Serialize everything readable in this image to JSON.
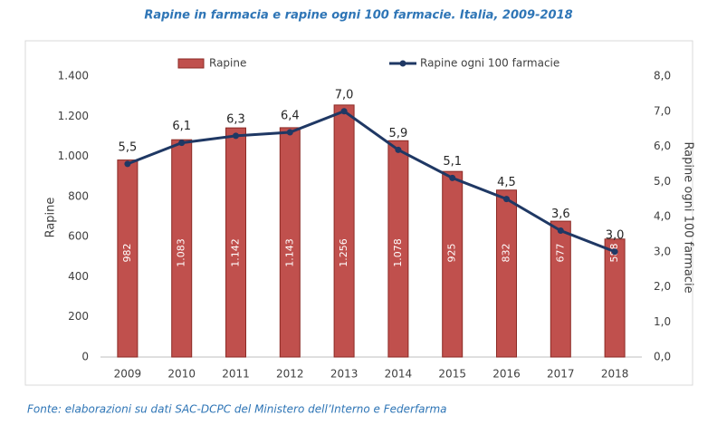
{
  "chart_data": {
    "type": "bar",
    "title": "Rapine in farmacia e rapine ogni 100 farmacie. Italia, 2009-2018",
    "source": "Fonte: elaborazioni su dati SAC-DCPC del Ministero dell’Interno e Federfarma",
    "y_label": "Rapine",
    "y2_label": "Rapine ogni 100 farmacie",
    "categories": [
      "2009",
      "2010",
      "2011",
      "2012",
      "2013",
      "2014",
      "2015",
      "2016",
      "2017",
      "2018"
    ],
    "series": [
      {
        "name": "Rapine",
        "type": "bar",
        "color": "#c0504d",
        "axis": "y",
        "values": [
          982,
          1083,
          1142,
          1143,
          1256,
          1078,
          925,
          832,
          677,
          588
        ],
        "value_labels": [
          "982",
          "1.083",
          "1.142",
          "1.143",
          "1.256",
          "1.078",
          "925",
          "832",
          "677",
          "588"
        ]
      },
      {
        "name": "Rapine ogni 100 farmacie",
        "type": "line",
        "color": "#1f3864",
        "axis": "y2",
        "values": [
          5.5,
          6.1,
          6.3,
          6.4,
          7.0,
          5.9,
          5.1,
          4.5,
          3.6,
          3.0
        ],
        "value_labels": [
          "5,5",
          "6,1",
          "6,3",
          "6,4",
          "7,0",
          "5,9",
          "5,1",
          "4,5",
          "3,6",
          "3,0"
        ]
      }
    ],
    "ylim": [
      0,
      1400
    ],
    "yticks": [
      0,
      200,
      400,
      600,
      800,
      {
        "value": 1000,
        "label": "1.000"
      },
      {
        "value": 1200,
        "label": "1.200"
      },
      {
        "value": 1400,
        "label": "1.400"
      }
    ],
    "y2lim": [
      0,
      8
    ],
    "y2ticks": [
      {
        "value": 0,
        "label": "0,0"
      },
      {
        "value": 1,
        "label": "1,0"
      },
      {
        "value": 2,
        "label": "2,0"
      },
      {
        "value": 3,
        "label": "3,0"
      },
      {
        "value": 4,
        "label": "4,0"
      },
      {
        "value": 5,
        "label": "5,0"
      },
      {
        "value": 6,
        "label": "6,0"
      },
      {
        "value": 7,
        "label": "7,0"
      },
      {
        "value": 8,
        "label": "8,0"
      }
    ],
    "grid": false,
    "legend": "top"
  }
}
